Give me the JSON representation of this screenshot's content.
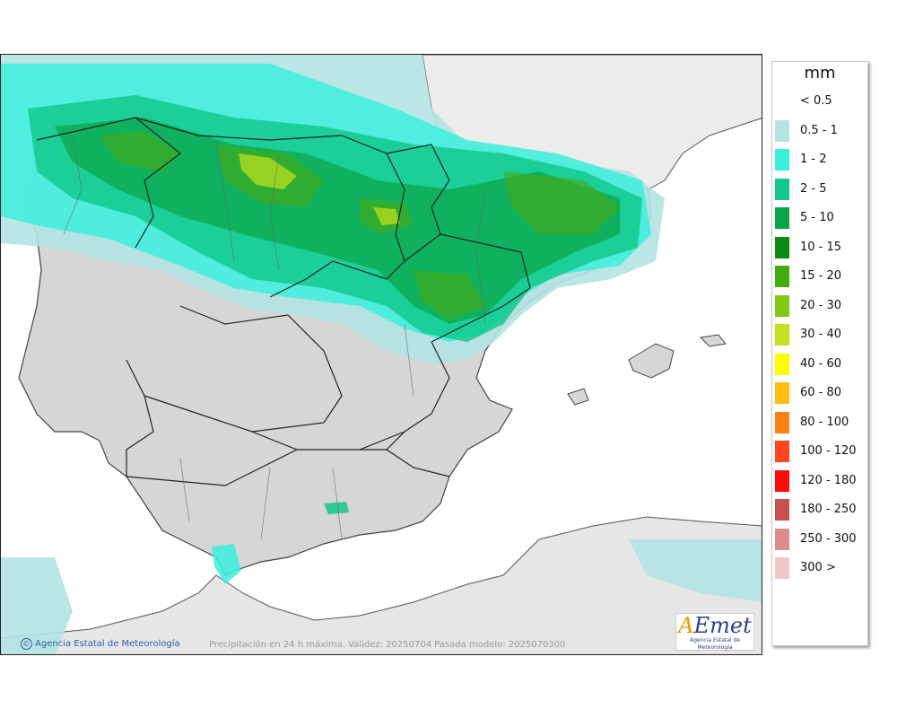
{
  "map": {
    "credit": "Agencia Estatal de Meteorología",
    "caption": "Precipitación en 24 h máxima. Validez: 20250704 Pasada modelo: 2025070300"
  },
  "logo": {
    "mark": "AEmet",
    "sub": "Agencia Estatal de Meteorología"
  },
  "legend": {
    "title": "mm",
    "items": [
      {
        "label": "< 0.5",
        "color": "#ffffff"
      },
      {
        "label": "0.5 - 1",
        "color": "#b4e3e3"
      },
      {
        "label": "1 - 2",
        "color": "#3ceedc"
      },
      {
        "label": "2 - 5",
        "color": "#14c88c"
      },
      {
        "label": "5 - 10",
        "color": "#0aa546"
      },
      {
        "label": "10 - 15",
        "color": "#0a8c14"
      },
      {
        "label": "15 - 20",
        "color": "#46aa14"
      },
      {
        "label": "20 - 30",
        "color": "#82c814"
      },
      {
        "label": "30 - 40",
        "color": "#c3e11e"
      },
      {
        "label": "40 - 60",
        "color": "#ffff00"
      },
      {
        "label": "60 - 80",
        "color": "#ffbe14"
      },
      {
        "label": "80 - 100",
        "color": "#ff8214"
      },
      {
        "label": "100 - 120",
        "color": "#ff461e"
      },
      {
        "label": "120 - 180",
        "color": "#ff0a0a"
      },
      {
        "label": "180 - 250",
        "color": "#c85050"
      },
      {
        "label": "250 - 300",
        "color": "#dc8c8c"
      },
      {
        "label": "300 >",
        "color": "#f0c8c8"
      }
    ]
  }
}
